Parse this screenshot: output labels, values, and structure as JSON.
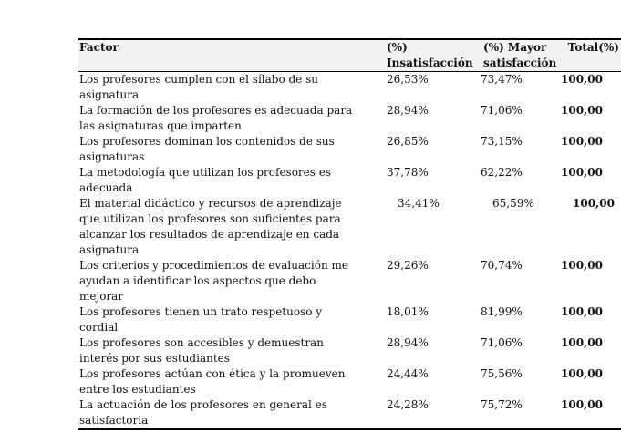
{
  "colors": {
    "header_bg": "#f2f2f2",
    "border": "#000000",
    "text": "#111111"
  },
  "table": {
    "headers": {
      "factor": "Factor",
      "insatisfaccion": "(%)\nInsatisfacción",
      "mayor_satisfaccion": "(%) Mayor\nsatisfacción",
      "total": "Total(%)"
    },
    "rows": [
      {
        "factor": "Los profesores cumplen con el sílabo de su\nasignatura",
        "insatisfaccion": "26,53%",
        "mayor_satisfaccion": "73,47%",
        "total": "100,00",
        "indent": false
      },
      {
        "factor": "La formación de los profesores es adecuada para\nlas asignaturas que imparten",
        "insatisfaccion": "28,94%",
        "mayor_satisfaccion": "71,06%",
        "total": "100,00",
        "indent": false
      },
      {
        "factor": "Los profesores dominan los contenidos de sus\nasignaturas",
        "insatisfaccion": "26,85%",
        "mayor_satisfaccion": "73,15%",
        "total": "100,00",
        "indent": false
      },
      {
        "factor": "La metodología que utilizan los profesores es\nadecuada",
        "insatisfaccion": "37,78%",
        "mayor_satisfaccion": "62,22%",
        "total": "100,00",
        "indent": false
      },
      {
        "factor": "El material didáctico y recursos de aprendizaje\nque utilizan los profesores son suficientes para\nalcanzar los resultados de aprendizaje en cada\nasignatura",
        "insatisfaccion": "34,41%",
        "mayor_satisfaccion": "65,59%",
        "total": "100,00",
        "indent": true
      },
      {
        "factor": "Los criterios y procedimientos de evaluación me\nayudan a identificar los aspectos que debo\nmejorar",
        "insatisfaccion": "29,26%",
        "mayor_satisfaccion": "70,74%",
        "total": "100,00",
        "indent": false
      },
      {
        "factor": "Los profesores tienen un trato respetuoso y\ncordial",
        "insatisfaccion": "18,01%",
        "mayor_satisfaccion": "81,99%",
        "total": "100,00",
        "indent": false
      },
      {
        "factor": "Los profesores son accesibles y demuestran\ninterés por sus estudiantes",
        "insatisfaccion": "28,94%",
        "mayor_satisfaccion": "71,06%",
        "total": "100,00",
        "indent": false
      },
      {
        "factor": "Los profesores actúan con ética y la promueven\nentre los estudiantes",
        "insatisfaccion": "24,44%",
        "mayor_satisfaccion": "75,56%",
        "total": "100,00",
        "indent": false
      },
      {
        "factor": "La actuación de los profesores en general es\nsatisfactoria",
        "insatisfaccion": "24,28%",
        "mayor_satisfaccion": "75,72%",
        "total": "100,00",
        "indent": false
      }
    ]
  }
}
